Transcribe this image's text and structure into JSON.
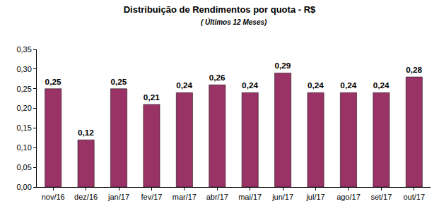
{
  "chart_data": {
    "type": "bar",
    "title": "Distribuição de Rendimentos por quota - R$",
    "subtitle": "( Últimos 12 Meses)",
    "categories": [
      "nov/16",
      "dez/16",
      "jan/17",
      "fev/17",
      "mar/17",
      "abr/17",
      "mai/17",
      "jun/17",
      "jul/17",
      "ago/17",
      "set/17",
      "out/17"
    ],
    "values": [
      0.25,
      0.12,
      0.25,
      0.21,
      0.24,
      0.26,
      0.24,
      0.29,
      0.24,
      0.24,
      0.24,
      0.28
    ],
    "value_labels": [
      "0,25",
      "0,12",
      "0,25",
      "0,21",
      "0,24",
      "0,26",
      "0,24",
      "0,29",
      "0,24",
      "0,24",
      "0,24",
      "0,28"
    ],
    "color": "#993366",
    "ylim": [
      0,
      0.35
    ],
    "yticks": [
      {
        "value": 0,
        "label": "0,00"
      },
      {
        "value": 0.05,
        "label": "0,05"
      },
      {
        "value": 0.1,
        "label": "0,10"
      },
      {
        "value": 0.15,
        "label": "0,15"
      },
      {
        "value": 0.2,
        "label": "0,20"
      },
      {
        "value": 0.25,
        "label": "0,25"
      },
      {
        "value": 0.3,
        "label": "0,30"
      },
      {
        "value": 0.35,
        "label": "0,35"
      }
    ],
    "grid": false,
    "data_labels": true
  }
}
